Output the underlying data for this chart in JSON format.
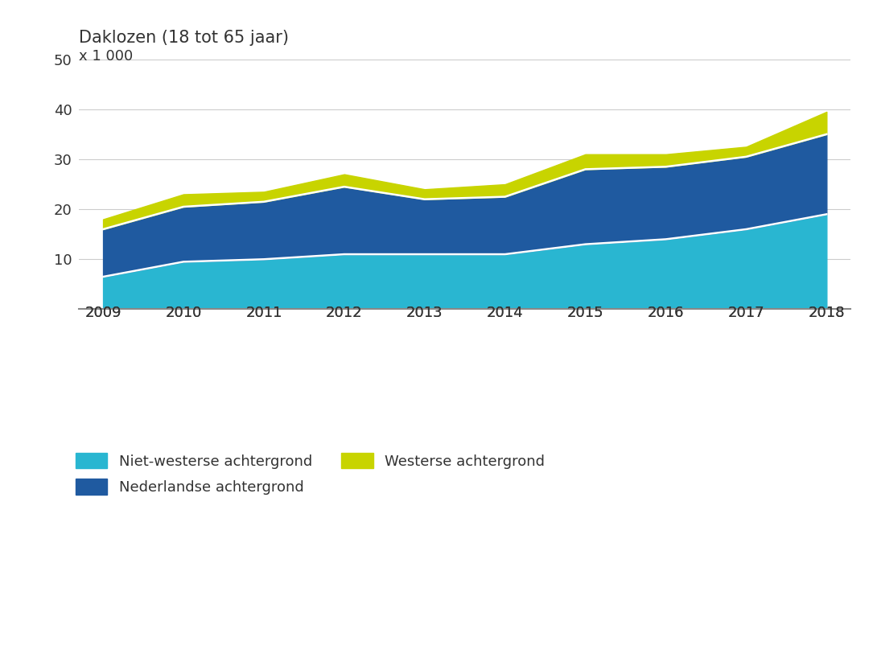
{
  "years": [
    2009,
    2010,
    2011,
    2012,
    2013,
    2014,
    2015,
    2016,
    2017,
    2018
  ],
  "niet_westerse": [
    6.5,
    9.5,
    10.0,
    11.0,
    11.0,
    11.0,
    13.0,
    14.0,
    16.0,
    19.0
  ],
  "nederlandse": [
    9.5,
    11.0,
    11.5,
    13.5,
    11.0,
    11.5,
    15.0,
    14.5,
    14.5,
    16.0
  ],
  "westerse": [
    2.0,
    2.5,
    2.0,
    2.5,
    2.0,
    2.5,
    3.0,
    2.5,
    2.0,
    4.5
  ],
  "color_niet_westerse": "#29B6D1",
  "color_nederlandse": "#1F5AA0",
  "color_westerse": "#C8D400",
  "color_divider": "#FFFFFF",
  "title_line1": "Daklozen (18 tot 65 jaar)",
  "title_line2": "x 1 000",
  "ylim": [
    0,
    50
  ],
  "yticks": [
    0,
    10,
    20,
    30,
    40,
    50
  ],
  "legend_labels": [
    "Niet-westerse achtergrond",
    "Nederlandse achtergrond",
    "Westerse achtergrond"
  ],
  "background_chart": "#FFFFFF",
  "background_figure": "#FFFFFF",
  "background_footer": "#E8E8E8",
  "grid_color": "#CCCCCC",
  "text_color": "#333333",
  "title_fontsize": 15,
  "label_fontsize": 13,
  "tick_fontsize": 13,
  "legend_fontsize": 13
}
